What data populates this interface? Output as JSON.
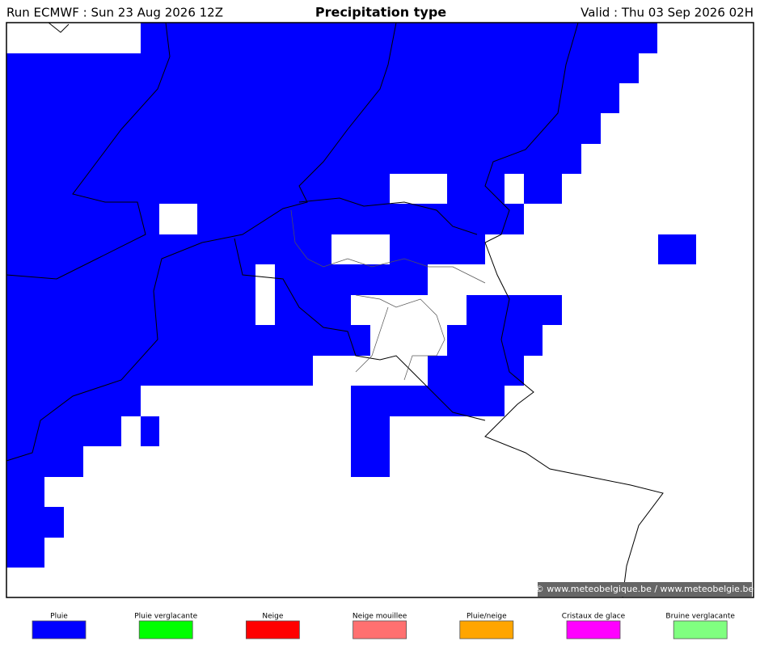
{
  "header": {
    "run": "Run ECMWF : Sun 23 Aug 2026 12Z",
    "title": "Precipitation type",
    "valid": "Valid : Thu 03 Sep 2026 02H"
  },
  "legend": {
    "items": [
      {
        "label": "Pluie",
        "color": "#0000ff"
      },
      {
        "label": "Pluie verglacante",
        "color": "#00ff00"
      },
      {
        "label": "Neige",
        "color": "#ff0000"
      },
      {
        "label": "Neige mouillee",
        "color": "#ff7070"
      },
      {
        "label": "Pluie/neige",
        "color": "#ffa500"
      },
      {
        "label": "Cristaux de glace",
        "color": "#ff00ff"
      },
      {
        "label": "Bruine verglacante",
        "color": "#80ff80"
      }
    ]
  },
  "credit": "© www.meteobelgique.be / www.meteobelgie.be"
}
